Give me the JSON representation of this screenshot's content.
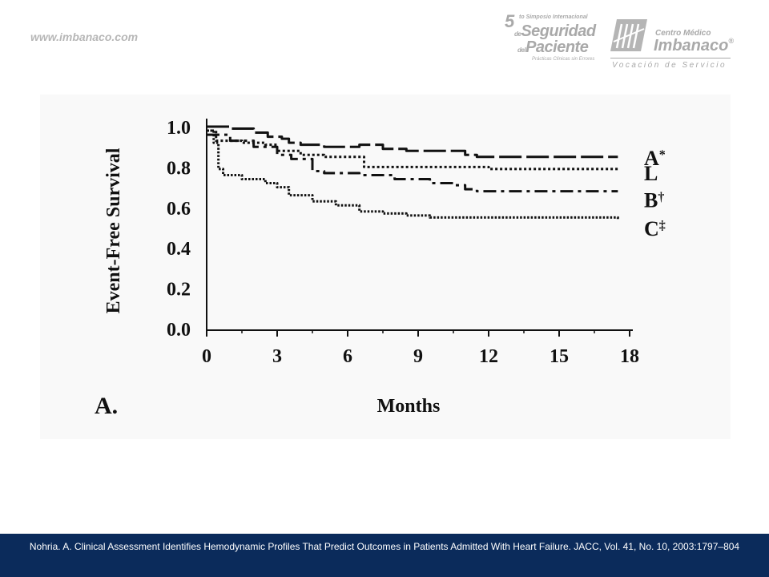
{
  "header": {
    "url": "www.imbanaco.com",
    "event_logo": {
      "number": "5",
      "ordinal": "to",
      "line1": "Simposio Internacional",
      "line2": "de",
      "line3": "Seguridad",
      "line4": "del",
      "line5": "Paciente",
      "line6": "Prácticas Clínicas sin Errores"
    },
    "hospital_logo": {
      "line1": "Centro Médico",
      "line2": "Imbanaco",
      "registered": "®",
      "tagline": "Vocación de Servicio"
    }
  },
  "chart_data": {
    "type": "line",
    "panel_label": "A.",
    "xlabel": "Months",
    "ylabel": "Event-Free Survival",
    "xlim": [
      0,
      18
    ],
    "ylim": [
      0,
      1.0
    ],
    "x_ticks": [
      "0",
      "3",
      "6",
      "9",
      "12",
      "15",
      "18"
    ],
    "y_ticks": [
      "0.0",
      "0.2",
      "0.4",
      "0.6",
      "0.8",
      "1.0"
    ],
    "grid": false,
    "legend_placement": "right, labels at line ends",
    "series": [
      {
        "name": "A",
        "marker": "*",
        "style": "long-dash",
        "points": [
          [
            0,
            1.0
          ],
          [
            1,
            0.99
          ],
          [
            2,
            0.97
          ],
          [
            2.6,
            0.95
          ],
          [
            3.2,
            0.94
          ],
          [
            3.5,
            0.92
          ],
          [
            4,
            0.91
          ],
          [
            5,
            0.9
          ],
          [
            6.5,
            0.91
          ],
          [
            7.5,
            0.89
          ],
          [
            8.5,
            0.88
          ],
          [
            10,
            0.88
          ],
          [
            11,
            0.86
          ],
          [
            11.5,
            0.85
          ],
          [
            17.5,
            0.85
          ]
        ]
      },
      {
        "name": "L",
        "marker": "",
        "style": "dotted",
        "points": [
          [
            0,
            0.98
          ],
          [
            0.4,
            0.93
          ],
          [
            1.5,
            0.92
          ],
          [
            2.5,
            0.91
          ],
          [
            3,
            0.88
          ],
          [
            4,
            0.86
          ],
          [
            5,
            0.85
          ],
          [
            6.6,
            0.85
          ],
          [
            6.7,
            0.8
          ],
          [
            12,
            0.79
          ],
          [
            17.5,
            0.79
          ]
        ]
      },
      {
        "name": "B",
        "marker": "†",
        "style": "dash-dot",
        "points": [
          [
            0,
            0.96
          ],
          [
            1,
            0.93
          ],
          [
            2,
            0.9
          ],
          [
            3,
            0.86
          ],
          [
            3.6,
            0.84
          ],
          [
            4.5,
            0.78
          ],
          [
            5,
            0.77
          ],
          [
            6.5,
            0.76
          ],
          [
            8,
            0.74
          ],
          [
            9.5,
            0.72
          ],
          [
            10.5,
            0.71
          ],
          [
            11,
            0.69
          ],
          [
            11.5,
            0.68
          ],
          [
            17.5,
            0.68
          ]
        ]
      },
      {
        "name": "C",
        "marker": "‡",
        "style": "dense-dotted",
        "points": [
          [
            0,
            0.98
          ],
          [
            0.3,
            0.92
          ],
          [
            0.5,
            0.79
          ],
          [
            0.7,
            0.76
          ],
          [
            1.5,
            0.74
          ],
          [
            2.5,
            0.72
          ],
          [
            3,
            0.7
          ],
          [
            3.5,
            0.66
          ],
          [
            4.5,
            0.63
          ],
          [
            5.5,
            0.61
          ],
          [
            6.5,
            0.58
          ],
          [
            7.5,
            0.57
          ],
          [
            8.5,
            0.56
          ],
          [
            9,
            0.56
          ],
          [
            9.5,
            0.55
          ],
          [
            12,
            0.55
          ],
          [
            17.5,
            0.54
          ]
        ]
      }
    ]
  },
  "footer": {
    "citation": "Nohria. A. Clinical Assessment  Identifies Hemodynamic Profiles That Predict Outcomes in Patients Admitted With Heart Failure. JACC, Vol. 41, No. 10, 2003:1797–804"
  }
}
